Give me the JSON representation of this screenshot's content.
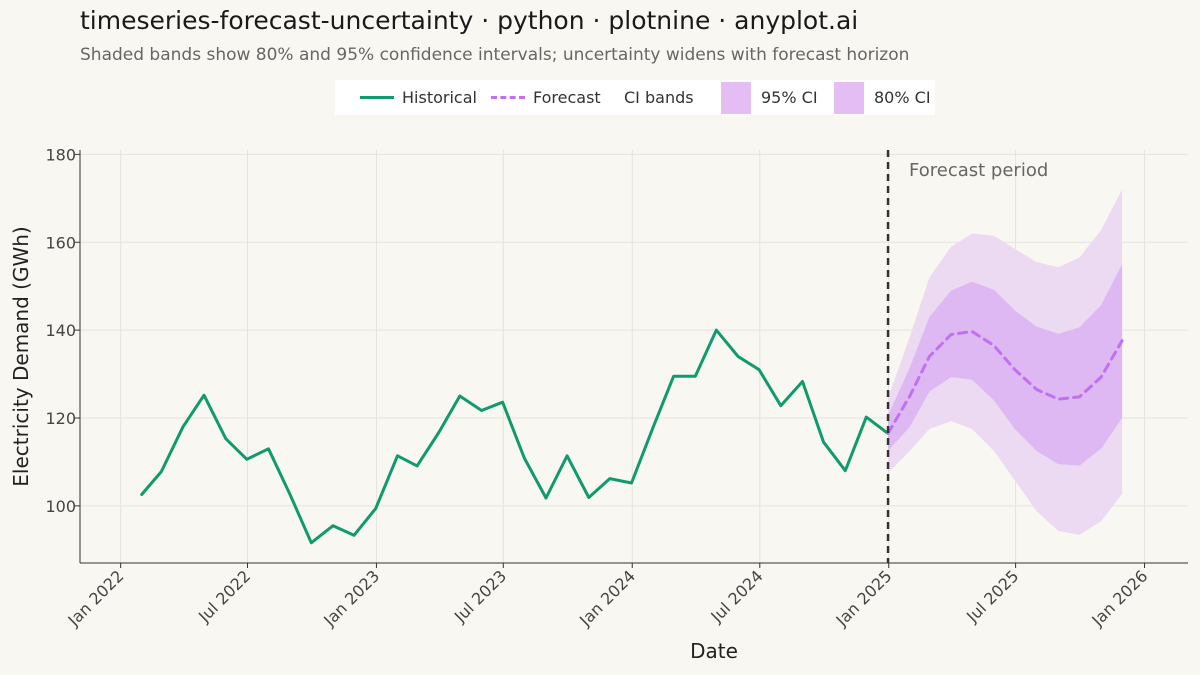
{
  "title": "timeseries-forecast-uncertainty · python · plotnine · anyplot.ai",
  "subtitle": "Shaded bands show 80% and 95% confidence intervals; uncertainty widens with forecast horizon",
  "legend": {
    "historical": "Historical",
    "forecast": "Forecast",
    "bands_title": "CI bands",
    "ci95": "95% CI",
    "ci80": "80% CI"
  },
  "colors": {
    "historical": "#109A6E",
    "forecast": "#C070F0",
    "band95": "#EBDAF2",
    "band80": "#DDB8F2",
    "legend_swatch": "#E3BDF3",
    "divider": "#333333",
    "background": "#F9F7F2"
  },
  "chart_data": {
    "type": "line",
    "xlabel": "Date",
    "ylabel": "Electricity Demand (GWh)",
    "ylim": [
      87,
      181
    ],
    "xlim": [
      "2021-11-04",
      "2026-03-04"
    ],
    "y_ticks": [
      100,
      120,
      140,
      160,
      180
    ],
    "x_ticks": [
      {
        "date": "2022-01-01",
        "label": "Jan 2022"
      },
      {
        "date": "2022-07-01",
        "label": "Jul 2022"
      },
      {
        "date": "2023-01-01",
        "label": "Jan 2023"
      },
      {
        "date": "2023-07-01",
        "label": "Jul 2023"
      },
      {
        "date": "2024-01-01",
        "label": "Jan 2024"
      },
      {
        "date": "2024-07-01",
        "label": "Jul 2024"
      },
      {
        "date": "2025-01-01",
        "label": "Jan 2025"
      },
      {
        "date": "2025-07-01",
        "label": "Jul 2025"
      },
      {
        "date": "2026-01-01",
        "label": "Jan 2026"
      }
    ],
    "grid": true,
    "annotation": {
      "date": "2024-12-31",
      "label": "Forecast period"
    },
    "series": [
      {
        "name": "Historical",
        "style": "solid",
        "x": [
          "2022-01-31",
          "2022-02-28",
          "2022-03-31",
          "2022-04-30",
          "2022-05-31",
          "2022-06-30",
          "2022-07-31",
          "2022-08-31",
          "2022-09-30",
          "2022-10-31",
          "2022-11-30",
          "2022-12-31",
          "2023-01-31",
          "2023-02-28",
          "2023-03-31",
          "2023-04-30",
          "2023-05-31",
          "2023-06-30",
          "2023-07-31",
          "2023-08-31",
          "2023-09-30",
          "2023-10-31",
          "2023-11-30",
          "2023-12-31",
          "2024-01-31",
          "2024-02-29",
          "2024-03-31",
          "2024-04-30",
          "2024-05-31",
          "2024-06-30",
          "2024-07-31",
          "2024-08-31",
          "2024-09-30",
          "2024-10-31",
          "2024-11-30",
          "2024-12-31"
        ],
        "y": [
          102.6,
          107.8,
          118.0,
          125.2,
          115.3,
          110.6,
          113.0,
          102.5,
          91.6,
          95.5,
          93.3,
          99.4,
          111.4,
          109.1,
          116.7,
          125.0,
          121.7,
          123.6,
          110.9,
          101.8,
          111.4,
          101.9,
          106.2,
          105.2,
          118.0,
          129.5,
          129.5,
          140.0,
          134.0,
          131.0,
          122.8,
          128.3,
          114.5,
          108.0,
          120.2,
          116.5
        ]
      },
      {
        "name": "Forecast",
        "style": "dashed",
        "x": [
          "2024-12-31",
          "2025-01-31",
          "2025-02-28",
          "2025-03-31",
          "2025-04-30",
          "2025-05-31",
          "2025-06-30",
          "2025-07-31",
          "2025-08-31",
          "2025-09-30",
          "2025-10-31",
          "2025-11-30",
          "2025-12-31"
        ],
        "y": [
          116.5,
          125.0,
          134.0,
          139.0,
          139.7,
          136.5,
          131.0,
          126.5,
          124.3,
          124.8,
          129.3,
          137.6,
          null
        ],
        "lower80": [
          112.5,
          118.0,
          126.0,
          129.3,
          128.7,
          124.0,
          117.5,
          112.5,
          109.5,
          109.2,
          113.0,
          120.0,
          null
        ],
        "upper80": [
          120.5,
          131.5,
          143.0,
          149.0,
          151.0,
          149.2,
          144.5,
          140.8,
          139.2,
          140.6,
          145.7,
          155.0,
          null
        ],
        "lower95": [
          107.5,
          112.5,
          117.5,
          119.3,
          117.5,
          112.5,
          105.8,
          98.8,
          94.3,
          93.4,
          96.5,
          102.7,
          null
        ],
        "upper95": [
          124.5,
          138.5,
          152.0,
          159.0,
          162.0,
          161.5,
          158.5,
          155.5,
          154.3,
          156.5,
          162.8,
          172.0,
          null
        ]
      }
    ]
  }
}
